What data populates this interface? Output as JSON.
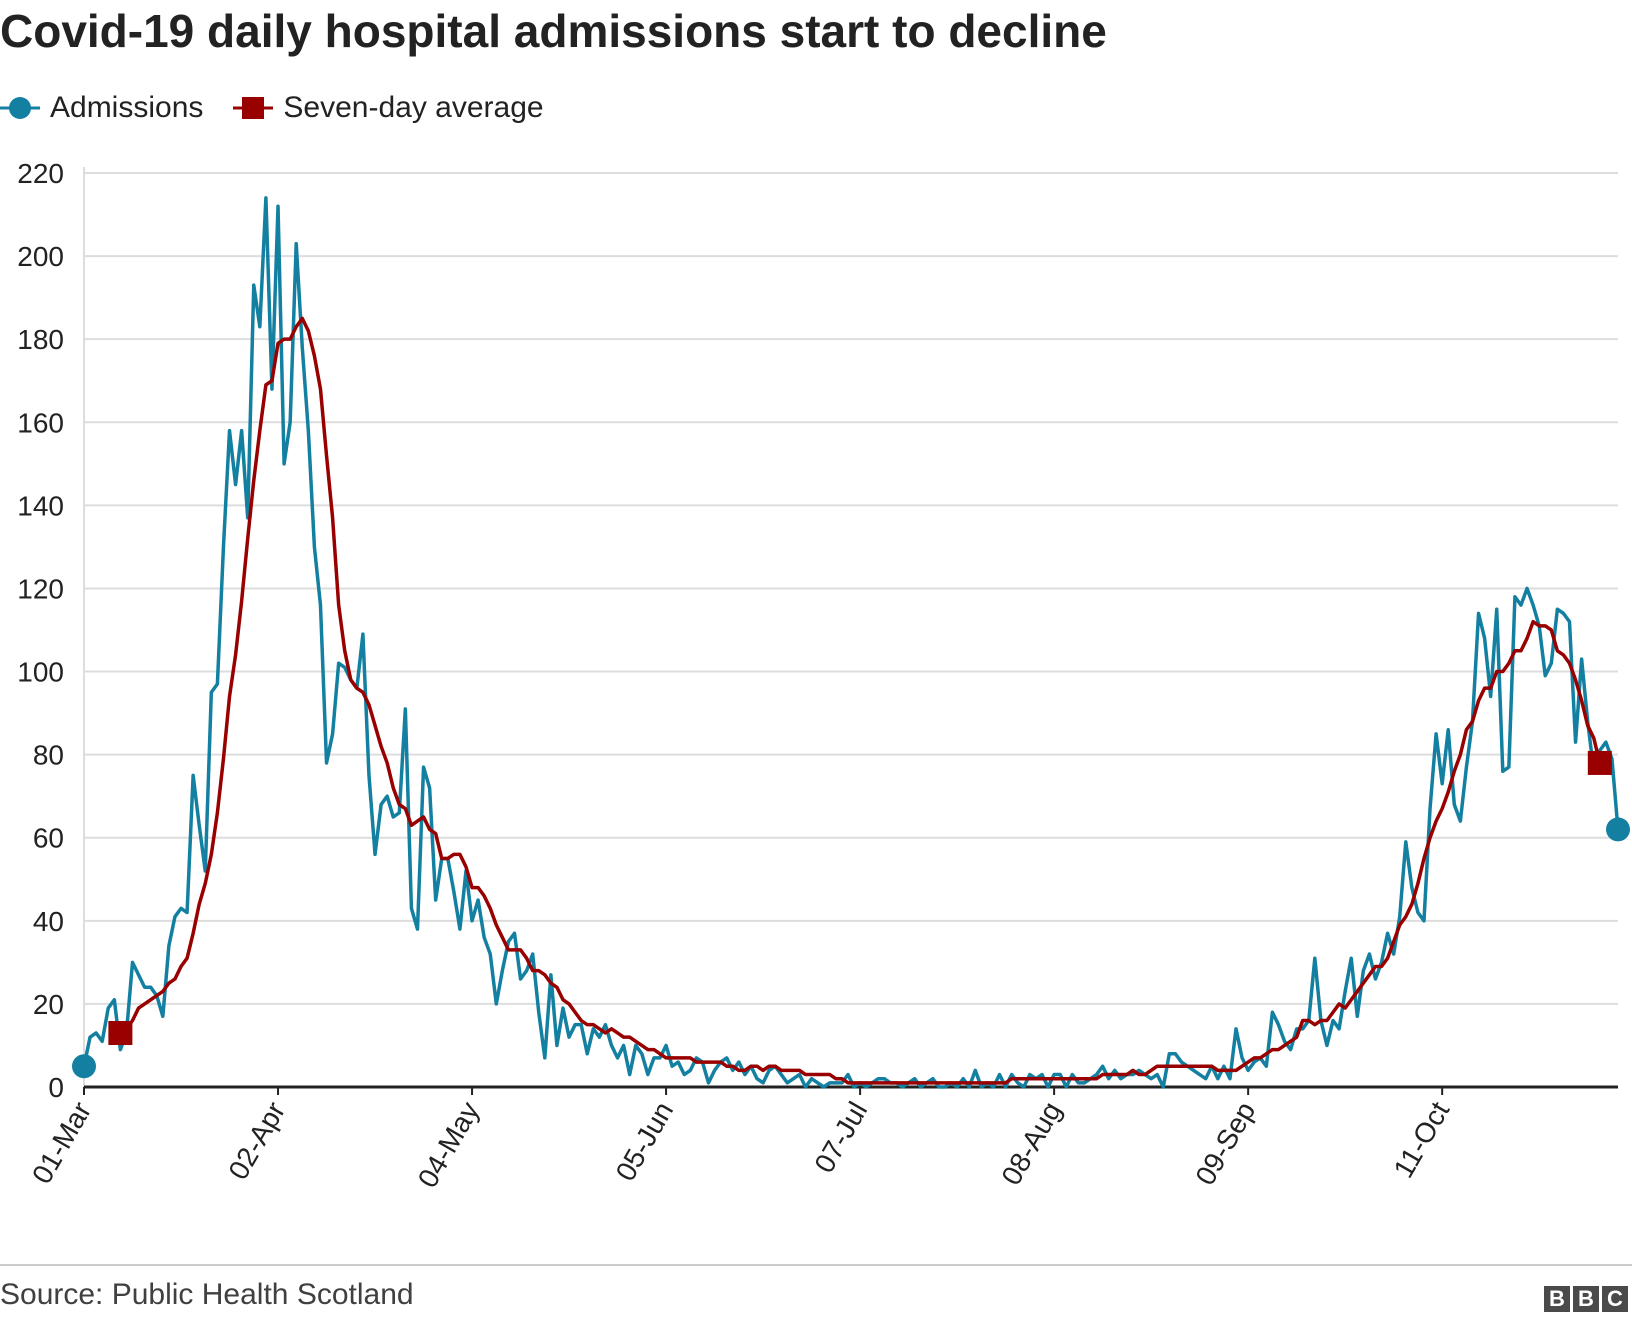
{
  "chart_data": {
    "type": "line",
    "title": "Covid-19 daily hospital admissions start to decline",
    "source": "Source: Public Health Scotland",
    "logo": [
      "B",
      "B",
      "C"
    ],
    "xlabel": "",
    "ylabel": "",
    "ylim": [
      0,
      220
    ],
    "yticks": [
      0,
      20,
      40,
      60,
      80,
      100,
      120,
      140,
      160,
      180,
      200,
      220
    ],
    "x_start": "01-Mar",
    "x_tick_labels": [
      {
        "day": 0,
        "label": "01-Mar"
      },
      {
        "day": 32,
        "label": "02-Apr"
      },
      {
        "day": 64,
        "label": "04-May"
      },
      {
        "day": 96,
        "label": "05-Jun"
      },
      {
        "day": 128,
        "label": "07-Jul"
      },
      {
        "day": 160,
        "label": "08-Aug"
      },
      {
        "day": 192,
        "label": "09-Sep"
      },
      {
        "day": 224,
        "label": "11-Oct"
      }
    ],
    "grid": true,
    "legend_position": "top-left",
    "series": [
      {
        "name": "Admissions",
        "color": "#1380A1",
        "marker": "circle",
        "values": [
          5,
          12,
          13,
          11,
          19,
          21,
          9,
          13,
          30,
          27,
          24,
          24,
          22,
          17,
          34,
          41,
          43,
          42,
          75,
          63,
          52,
          95,
          97,
          130,
          158,
          145,
          158,
          137,
          193,
          183,
          214,
          168,
          212,
          150,
          160,
          203,
          178,
          158,
          130,
          116,
          78,
          85,
          102,
          101,
          98,
          96,
          109,
          75,
          56,
          68,
          70,
          65,
          66,
          91,
          43,
          38,
          77,
          72,
          45,
          55,
          55,
          47,
          38,
          52,
          40,
          45,
          36,
          32,
          20,
          28,
          35,
          37,
          26,
          28,
          32,
          18,
          7,
          27,
          10,
          19,
          12,
          15,
          15,
          8,
          14,
          12,
          15,
          10,
          7,
          10,
          3,
          10,
          8,
          3,
          7,
          7,
          10,
          5,
          6,
          3,
          4,
          7,
          6,
          1,
          4,
          6,
          7,
          4,
          6,
          3,
          5,
          2,
          1,
          4,
          5,
          3,
          1,
          2,
          3,
          0,
          2,
          1,
          0,
          1,
          1,
          1,
          3,
          0,
          1,
          0,
          1,
          2,
          2,
          1,
          1,
          0,
          1,
          2,
          0,
          1,
          2,
          0,
          0,
          1,
          0,
          2,
          0,
          4,
          0,
          1,
          0,
          3,
          0,
          3,
          1,
          0,
          3,
          2,
          3,
          0,
          3,
          3,
          0,
          3,
          1,
          1,
          2,
          3,
          5,
          2,
          4,
          2,
          3,
          3,
          4,
          3,
          2,
          3,
          0,
          8,
          8,
          6,
          5,
          4,
          3,
          2,
          5,
          2,
          5,
          2,
          14,
          7,
          4,
          6,
          7,
          5,
          18,
          15,
          11,
          9,
          14,
          14,
          16,
          31,
          16,
          10,
          16,
          14,
          23,
          31,
          17,
          28,
          32,
          26,
          30,
          37,
          32,
          41,
          59,
          48,
          42,
          40,
          67,
          85,
          73,
          86,
          68,
          64,
          77,
          88,
          114,
          108,
          94,
          115,
          76,
          77,
          118,
          116,
          120,
          116,
          111,
          99,
          102,
          115,
          114,
          112,
          83,
          103,
          88,
          76,
          81,
          83,
          79,
          62
        ]
      },
      {
        "name": "Seven-day average",
        "color": "#990000",
        "marker": "square",
        "start_day": 6,
        "values": [
          13,
          14,
          16,
          19,
          20,
          21,
          22,
          23,
          25,
          26,
          29,
          31,
          37,
          44,
          49,
          56,
          66,
          79,
          94,
          104,
          117,
          132,
          146,
          158,
          169,
          170,
          179,
          180,
          180,
          183,
          185,
          182,
          176,
          168,
          152,
          137,
          116,
          105,
          98,
          96,
          95,
          92,
          87,
          82,
          78,
          72,
          68,
          67,
          63,
          64,
          65,
          62,
          61,
          55,
          55,
          56,
          56,
          53,
          48,
          48,
          46,
          43,
          39,
          36,
          33,
          33,
          33,
          31,
          28,
          28,
          27,
          25,
          24,
          21,
          20,
          18,
          16,
          15,
          15,
          14,
          13,
          14,
          13,
          12,
          12,
          11,
          10,
          9,
          9,
          8,
          7,
          7,
          7,
          7,
          7,
          6,
          6,
          6,
          6,
          6,
          5,
          5,
          4,
          4,
          5,
          5,
          4,
          5,
          5,
          4,
          4,
          4,
          4,
          3,
          3,
          3,
          3,
          3,
          2,
          2,
          1,
          1,
          1,
          1,
          1,
          1,
          1,
          1,
          1,
          1,
          1,
          1,
          1,
          1,
          1,
          1,
          1,
          1,
          1,
          1,
          1,
          1,
          1,
          1,
          1,
          1,
          1,
          2,
          2,
          2,
          2,
          2,
          2,
          2,
          2,
          2,
          2,
          2,
          2,
          2,
          2,
          2,
          3,
          3,
          3,
          3,
          3,
          4,
          3,
          3,
          4,
          5,
          5,
          5,
          5,
          5,
          5,
          5,
          5,
          5,
          5,
          4,
          4,
          4,
          4,
          5,
          6,
          7,
          7,
          8,
          9,
          9,
          10,
          11,
          12,
          16,
          16,
          15,
          16,
          16,
          18,
          20,
          19,
          21,
          23,
          25,
          27,
          29,
          29,
          31,
          35,
          39,
          41,
          44,
          49,
          55,
          60,
          64,
          67,
          71,
          76,
          80,
          86,
          88,
          93,
          96,
          96,
          100,
          100,
          102,
          105,
          105,
          108,
          112,
          111,
          111,
          110,
          105,
          104,
          102,
          98,
          93,
          87,
          84,
          78
        ]
      }
    ]
  }
}
